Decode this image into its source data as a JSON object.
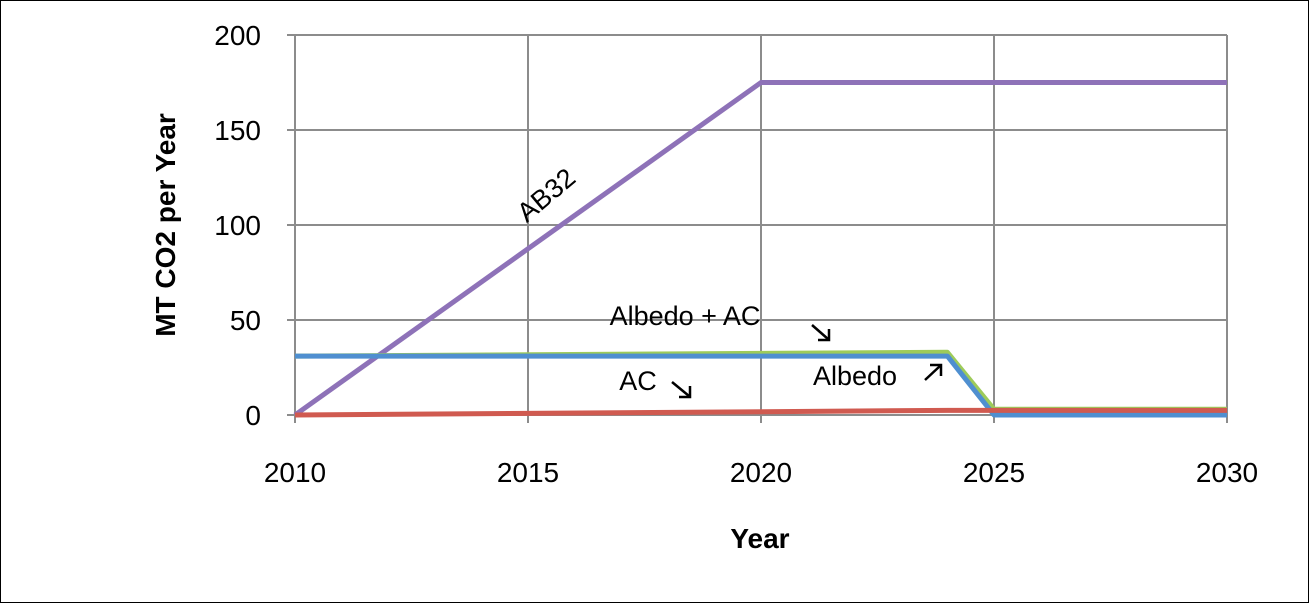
{
  "chart_data": {
    "type": "line",
    "xlabel": "Year",
    "ylabel": "MT CO2 per Year",
    "xlim": [
      2010,
      2030
    ],
    "ylim": [
      0,
      200
    ],
    "x_ticks": [
      2010,
      2015,
      2020,
      2025,
      2030
    ],
    "y_ticks": [
      0,
      50,
      100,
      150,
      200
    ],
    "grid": true,
    "legend": "none (series labelled inline with annotations)",
    "series": [
      {
        "name": "AB32",
        "color": "#8e72b8",
        "x": [
          2010,
          2020,
          2030
        ],
        "y": [
          0,
          175,
          175
        ]
      },
      {
        "name": "Albedo + AC",
        "color": "#9ecb5a",
        "x": [
          2010,
          2024,
          2025,
          2030
        ],
        "y": [
          31,
          33,
          3,
          3
        ]
      },
      {
        "name": "Albedo",
        "color": "#4f8fd0",
        "x": [
          2010,
          2024,
          2025,
          2030
        ],
        "y": [
          31,
          31,
          0,
          0
        ]
      },
      {
        "name": "AC",
        "color": "#d05a50",
        "x": [
          2010,
          2024,
          2025,
          2030
        ],
        "y": [
          0,
          2.4,
          2.4,
          2.4
        ]
      }
    ],
    "annotations": [
      {
        "text": "AB32",
        "arrow": "none"
      },
      {
        "text": "Albedo + AC",
        "arrow": "down-right"
      },
      {
        "text": "AC",
        "arrow": "down-right"
      },
      {
        "text": "Albedo",
        "arrow": "up-right"
      }
    ]
  }
}
